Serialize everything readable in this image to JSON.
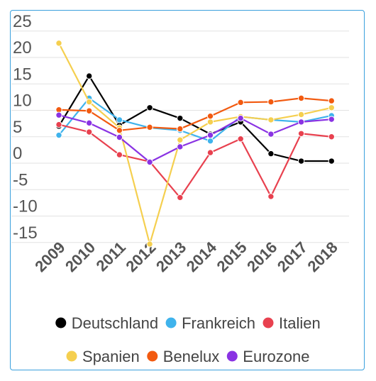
{
  "chart_data": {
    "type": "line",
    "title": "",
    "xlabel": "",
    "ylabel": "",
    "categories": [
      "2009",
      "2010",
      "2011",
      "2012",
      "2013",
      "2014",
      "2015",
      "2016",
      "2017",
      "2018"
    ],
    "yticks": [
      25,
      20,
      15,
      10,
      5,
      0,
      -5,
      -10,
      -15
    ],
    "ylim": [
      -17,
      25
    ],
    "grid": true,
    "legend_position": "bottom",
    "series": [
      {
        "name": "Deutschland",
        "color": "#000000",
        "values": [
          7,
          16.5,
          7.2,
          10.5,
          8.5,
          5.5,
          7.8,
          1.8,
          0.4,
          0.4
        ]
      },
      {
        "name": "Frankreich",
        "color": "#3fb3ec",
        "values": [
          5.3,
          12.3,
          8.2,
          6.7,
          6.2,
          4.2,
          8.8,
          8.2,
          7.8,
          9
        ]
      },
      {
        "name": "Italien",
        "color": "#e8414f",
        "values": [
          7.3,
          5.9,
          1.6,
          0.3,
          -6.5,
          2,
          4.6,
          -6.3,
          5.6,
          5
        ]
      },
      {
        "name": "Spanien",
        "color": "#f5cf4f",
        "values": [
          22.7,
          11.6,
          6.7,
          -15.3,
          4.4,
          7.8,
          8.8,
          8.2,
          9.2,
          10.5
        ]
      },
      {
        "name": "Benelux",
        "color": "#f25a10",
        "values": [
          10.1,
          9.9,
          6.2,
          6.8,
          6.5,
          8.9,
          11.5,
          11.6,
          12.3,
          11.8
        ]
      },
      {
        "name": "Eurozone",
        "color": "#8a33e3",
        "values": [
          9.1,
          7.6,
          4.9,
          0.2,
          3.1,
          5.3,
          8.5,
          5.5,
          7.8,
          8.3
        ]
      }
    ]
  }
}
